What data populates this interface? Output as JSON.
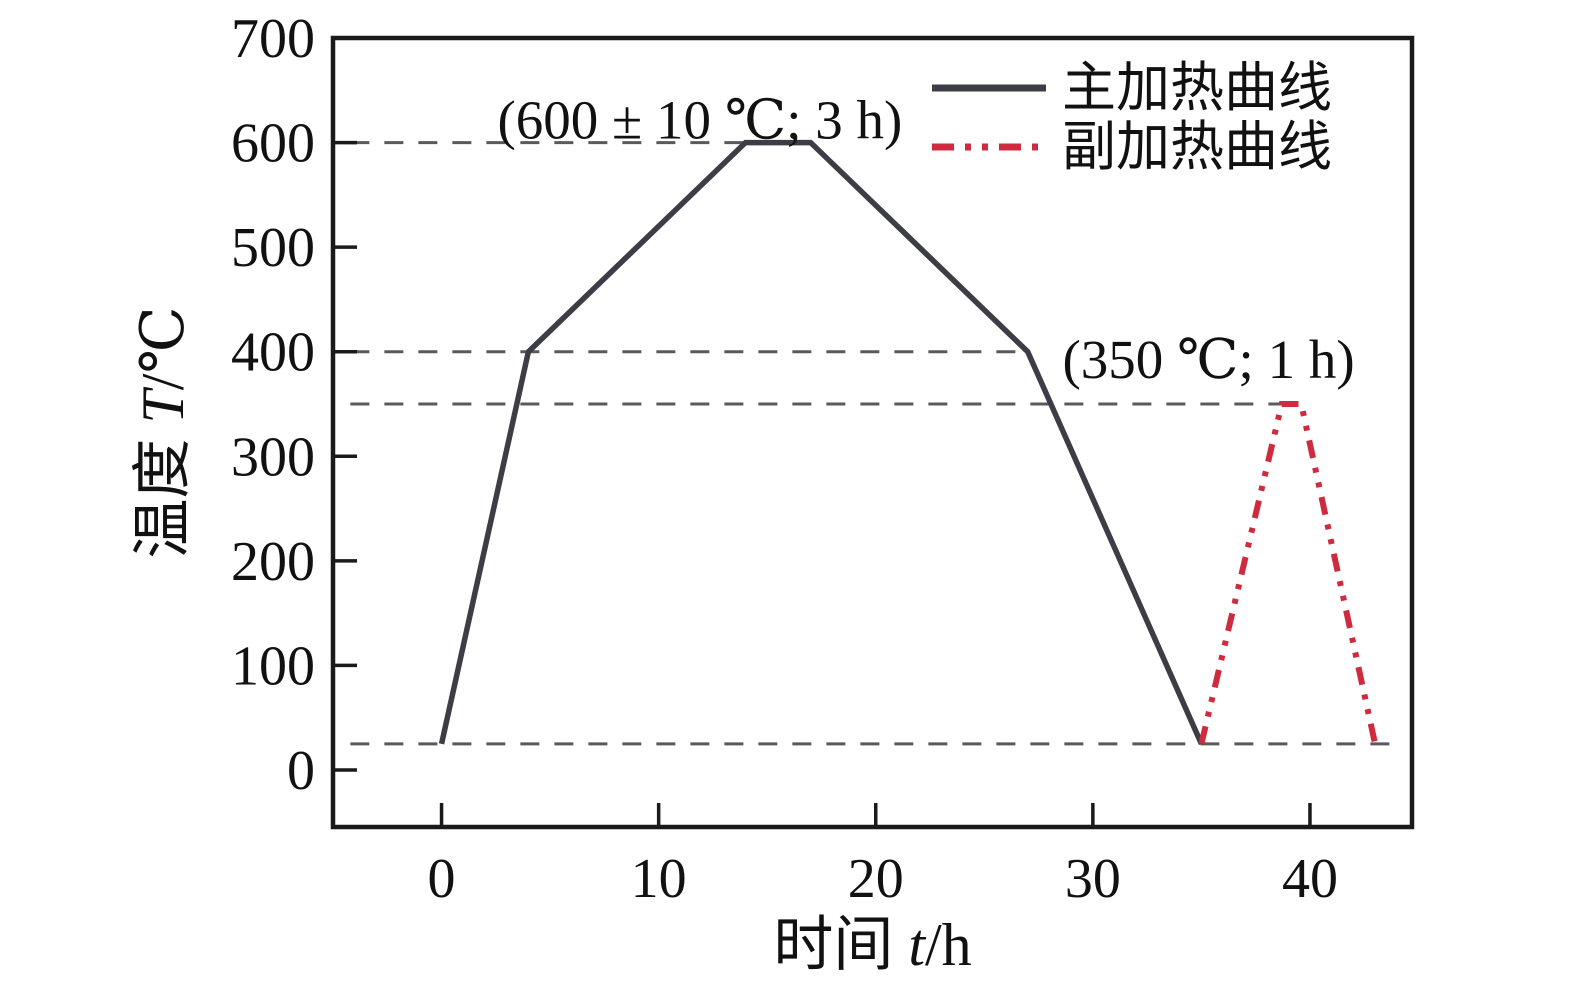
{
  "figure": {
    "background": "#ffffff",
    "frame_color": "#1a1a1a",
    "dashed_line_color": "#5a5a5e"
  },
  "chart_data": {
    "type": "line",
    "title": "",
    "xlabel": "时间 t/h",
    "ylabel": "温度 T/℃",
    "x_axis": {
      "title_prefix": "时间 ",
      "title_var": "t",
      "title_suffix": "/h",
      "ticks": [
        0,
        10,
        20,
        30,
        40
      ]
    },
    "y_axis": {
      "title_prefix": "温度 ",
      "title_var": "T",
      "title_suffix": "/℃",
      "ticks": [
        0,
        100,
        200,
        300,
        400,
        500,
        600,
        700
      ]
    },
    "xlim": [
      -5.0,
      44.7
    ],
    "ylim": [
      -54.5,
      700
    ],
    "grid": "off",
    "legend_position": "top-right-inside",
    "series": [
      {
        "name": "主加热曲线",
        "style": "solid",
        "color": "#3d3d46",
        "points": [
          [
            0,
            25
          ],
          [
            4,
            400
          ],
          [
            14,
            600
          ],
          [
            17,
            600
          ],
          [
            27,
            400
          ],
          [
            35,
            25
          ]
        ]
      },
      {
        "name": "副加热曲线",
        "style": "dash-dot-dot",
        "color": "#cf2b3e",
        "points": [
          [
            35,
            25
          ],
          [
            38.7,
            350
          ],
          [
            39.6,
            350
          ],
          [
            43,
            25
          ]
        ]
      }
    ],
    "reference_lines": [
      {
        "y": 600,
        "x_from": -4.2,
        "x_to": 14
      },
      {
        "y": 400,
        "x_from": -4.2,
        "x_to": 27
      },
      {
        "y": 350,
        "x_from": -4.2,
        "x_to": 39.6
      },
      {
        "y": 25,
        "x_from": -4.2,
        "x_to": 44.35
      }
    ],
    "annotations": [
      {
        "id": "annotation-600c-3h",
        "text": "(600 ± 10 ℃; 3 h)",
        "x": 11.9,
        "y": 604,
        "anchor": "middle"
      },
      {
        "id": "annotation-350c-1h",
        "text": "(350 ℃; 1 h)",
        "x": 28.6,
        "y": 375,
        "anchor": "start"
      }
    ]
  }
}
